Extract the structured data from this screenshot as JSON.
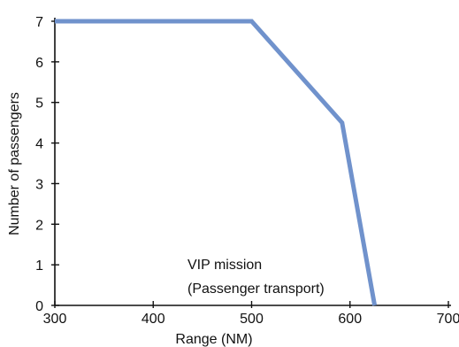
{
  "chart_data": {
    "type": "line",
    "title": "",
    "xlabel": "Range (NM)",
    "ylabel": "Number of passengers",
    "xlim": [
      300,
      700
    ],
    "ylim": [
      0,
      7
    ],
    "x_ticks": [
      "300",
      "400",
      "500",
      "600",
      "700"
    ],
    "y_ticks": [
      "0",
      "1",
      "2",
      "3",
      "4",
      "5",
      "6",
      "7"
    ],
    "grid": false,
    "series": [
      {
        "x": [
          300,
          500,
          592,
          625
        ],
        "y": [
          7,
          7,
          4.5,
          0
        ],
        "color": "#7092cc"
      }
    ],
    "annotations": [
      "VIP mission",
      "(Passenger transport)"
    ]
  }
}
